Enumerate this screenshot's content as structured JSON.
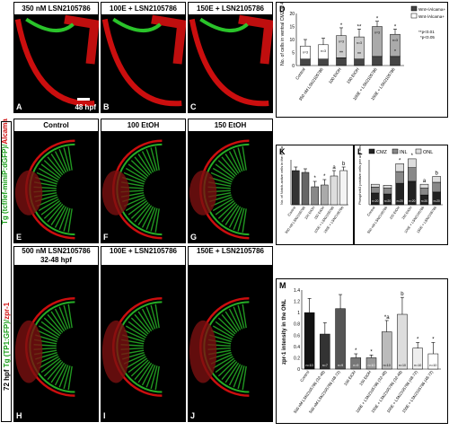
{
  "row1": {
    "headers": [
      "350 nM LSN2105786",
      "100E + LSN2105786",
      "150E + LSN2105786"
    ],
    "letters": [
      "A",
      "B",
      "C"
    ],
    "timepoint": "48 hpf",
    "side_label_green": "Tg (tcf/lef-miniP:dGFP)/",
    "side_label_red": "Alcama"
  },
  "row2": {
    "headers": [
      "Control",
      "100 EtOH",
      "150 EtOH"
    ],
    "letters": [
      "E",
      "F",
      "G"
    ]
  },
  "row3": {
    "headers": [
      "500 nM LSN2105786\n32-48 hpf",
      "100E + LSN2105786",
      "150E + LSN2105786"
    ],
    "letters": [
      "H",
      "I",
      "J"
    ]
  },
  "side_label2": {
    "prefix": "72 hpf",
    "green": "Tg (TP1:GFP)/",
    "red": "zpr-1"
  },
  "panels": {
    "D": "D",
    "K": "K",
    "L": "L",
    "M": "M"
  },
  "colors": {
    "green": "#2fd82f",
    "red": "#e11010",
    "black": "#222222",
    "gray": "#888888",
    "lightgray": "#d0d0d0"
  },
  "chart_data": [
    {
      "id": "D",
      "type": "bar",
      "ylabel": "No. of cells in ventral CMZ at 48 hpf",
      "ylim": [
        0,
        20
      ],
      "yticks": [
        0,
        5,
        10,
        15,
        20
      ],
      "categories": [
        "Control",
        "350 nM LSN2105786",
        "100 EtOH",
        "150 EtOH",
        "100E + LSN2105786",
        "150E + LSN2105786"
      ],
      "series": [
        {
          "name": "Wnt+/Alcama+",
          "values": [
            2.5,
            2.5,
            3,
            2.5,
            3.5,
            3.5
          ]
        },
        {
          "name": "Wnt-/Alcama+",
          "values": [
            5,
            5.5,
            8.5,
            8.5,
            11.5,
            8.5
          ]
        }
      ],
      "errors": [
        2.5,
        2.5,
        3,
        3,
        2,
        2
      ],
      "n_labels": [
        "n=3",
        "n=3",
        "n=3",
        "n=3",
        "n=3",
        "n=3"
      ],
      "sig_marks": [
        "",
        "",
        "*",
        "**",
        "*",
        "*"
      ],
      "sig_marks_lower": [
        "",
        "",
        "**",
        "**",
        "",
        "*"
      ],
      "legend": [
        "Wnt+/Alcama+",
        "Wnt-/Alcama+"
      ],
      "note": [
        "**p<0.01",
        "*p<0.05"
      ],
      "legend_position": "top-right"
    },
    {
      "id": "K",
      "type": "bar",
      "ylabel": "No. of Notch-active cells in the retina at 72 hpf",
      "ylim": [
        0,
        25
      ],
      "categories": [
        "Control",
        "500 nM LSN2105786",
        "100 EtOH",
        "150 EtOH",
        "100E + LSN2105786",
        "150E + LSN2105786"
      ],
      "values": [
        19,
        18,
        10,
        11,
        16,
        19
      ],
      "errors": [
        2,
        2,
        3,
        3,
        3,
        2
      ],
      "sig_marks": [
        "",
        "",
        "*",
        "*",
        "a",
        "b"
      ],
      "bar_colors": [
        "#333333",
        "#666666",
        "#888888",
        "#aaaaaa",
        "#dddddd",
        "#f4f4f4"
      ]
    },
    {
      "id": "L",
      "type": "bar",
      "ylabel": "Phosphoh3 positive cells per unit area (X10⁴)",
      "legend": [
        "CMZ",
        "INL",
        "ONL"
      ],
      "legend_position": "top",
      "categories": [
        "Control",
        "500 nM LSN2105786",
        "100 EtOH",
        "150 EtOH",
        "100E + LSN2105786",
        "150E + LSN2105786"
      ],
      "series": [
        {
          "name": "CMZ",
          "values": [
            1.2,
            1.1,
            2.2,
            2.4,
            1.0,
            1.3
          ]
        },
        {
          "name": "INL",
          "values": [
            0.6,
            0.6,
            1.2,
            1.4,
            0.7,
            1.0
          ]
        },
        {
          "name": "ONL",
          "values": [
            0.3,
            0.3,
            0.8,
            0.9,
            0.4,
            0.6
          ]
        }
      ],
      "n_labels": [
        "n=20",
        "n=20",
        "n=20",
        "n=20",
        "n=20",
        "n=20"
      ],
      "sig_marks": [
        "",
        "",
        "*",
        "*",
        "a",
        "b"
      ]
    },
    {
      "id": "M",
      "type": "bar",
      "ylabel": "zpr-1 intensity in the ONL",
      "ylim": [
        0,
        1.4
      ],
      "yticks": [
        0,
        0.2,
        0.4,
        0.6,
        0.8,
        1,
        1.2,
        1.4
      ],
      "categories": [
        "Control",
        "500 nM LSN2105786 (32-48)",
        "500 nM LSN2105786 (48-72)",
        "100 EtOH",
        "150 EtOH",
        "100E + LSN2105786 (32-48)",
        "150E + LSN2105786 (32-48)",
        "100E + LSN2105786 (48-72)",
        "150E + LSN2105786 (48-72)"
      ],
      "values": [
        1.0,
        0.62,
        1.07,
        0.2,
        0.2,
        0.66,
        0.97,
        0.37,
        0.27
      ],
      "errors": [
        0.25,
        0.2,
        0.25,
        0.07,
        0.05,
        0.2,
        0.3,
        0.1,
        0.2
      ],
      "n_labels": [
        "n=10",
        "n=7",
        "n=9",
        "n=9",
        "n=10",
        "n=10",
        "n=10",
        "n=10",
        "n=10"
      ],
      "sig_marks": [
        "",
        "",
        "",
        "*",
        "*",
        "*a",
        "b",
        "*",
        "*"
      ],
      "bar_colors": [
        "#111111",
        "#333333",
        "#555555",
        "#777777",
        "#999999",
        "#bbbbbb",
        "#dddddd",
        "#eeeeee",
        "#ffffff"
      ]
    }
  ]
}
